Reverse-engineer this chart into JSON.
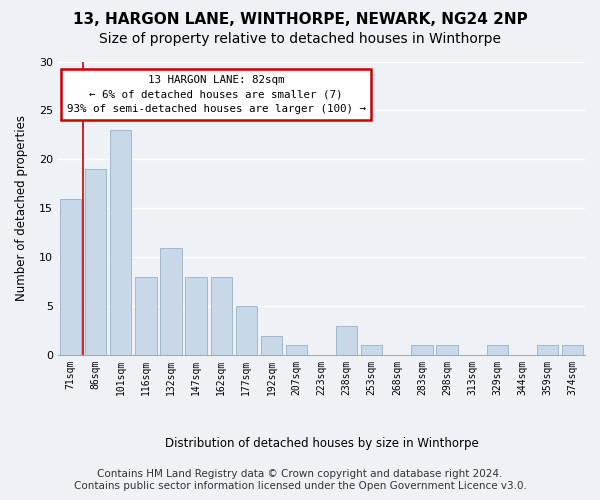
{
  "title1": "13, HARGON LANE, WINTHORPE, NEWARK, NG24 2NP",
  "title2": "Size of property relative to detached houses in Winthorpe",
  "xlabel": "Distribution of detached houses by size in Winthorpe",
  "ylabel": "Number of detached properties",
  "categories": [
    "71sqm",
    "86sqm",
    "101sqm",
    "116sqm",
    "132sqm",
    "147sqm",
    "162sqm",
    "177sqm",
    "192sqm",
    "207sqm",
    "223sqm",
    "238sqm",
    "253sqm",
    "268sqm",
    "283sqm",
    "298sqm",
    "313sqm",
    "329sqm",
    "344sqm",
    "359sqm",
    "374sqm"
  ],
  "values": [
    16,
    19,
    23,
    8,
    11,
    8,
    8,
    5,
    2,
    1,
    0,
    3,
    1,
    0,
    1,
    1,
    0,
    1,
    0,
    1,
    1
  ],
  "bar_color": "#c8d8e8",
  "bar_edge_color": "#a0b8cc",
  "annotation_line1": "13 HARGON LANE: 82sqm",
  "annotation_line2": "← 6% of detached houses are smaller (7)",
  "annotation_line3": "93% of semi-detached houses are larger (100) →",
  "annotation_box_color": "#ffffff",
  "annotation_box_edge": "#cc0000",
  "vline_color": "#cc0000",
  "vline_x": 0.5,
  "ylim": [
    0,
    30
  ],
  "yticks": [
    0,
    5,
    10,
    15,
    20,
    25,
    30
  ],
  "footer_line1": "Contains HM Land Registry data © Crown copyright and database right 2024.",
  "footer_line2": "Contains public sector information licensed under the Open Government Licence v3.0.",
  "bg_color": "#eef2f7",
  "plot_bg_color": "#eef2f7",
  "grid_color": "#ffffff",
  "title_fontsize": 11,
  "subtitle_fontsize": 10,
  "footer_fontsize": 7.5
}
